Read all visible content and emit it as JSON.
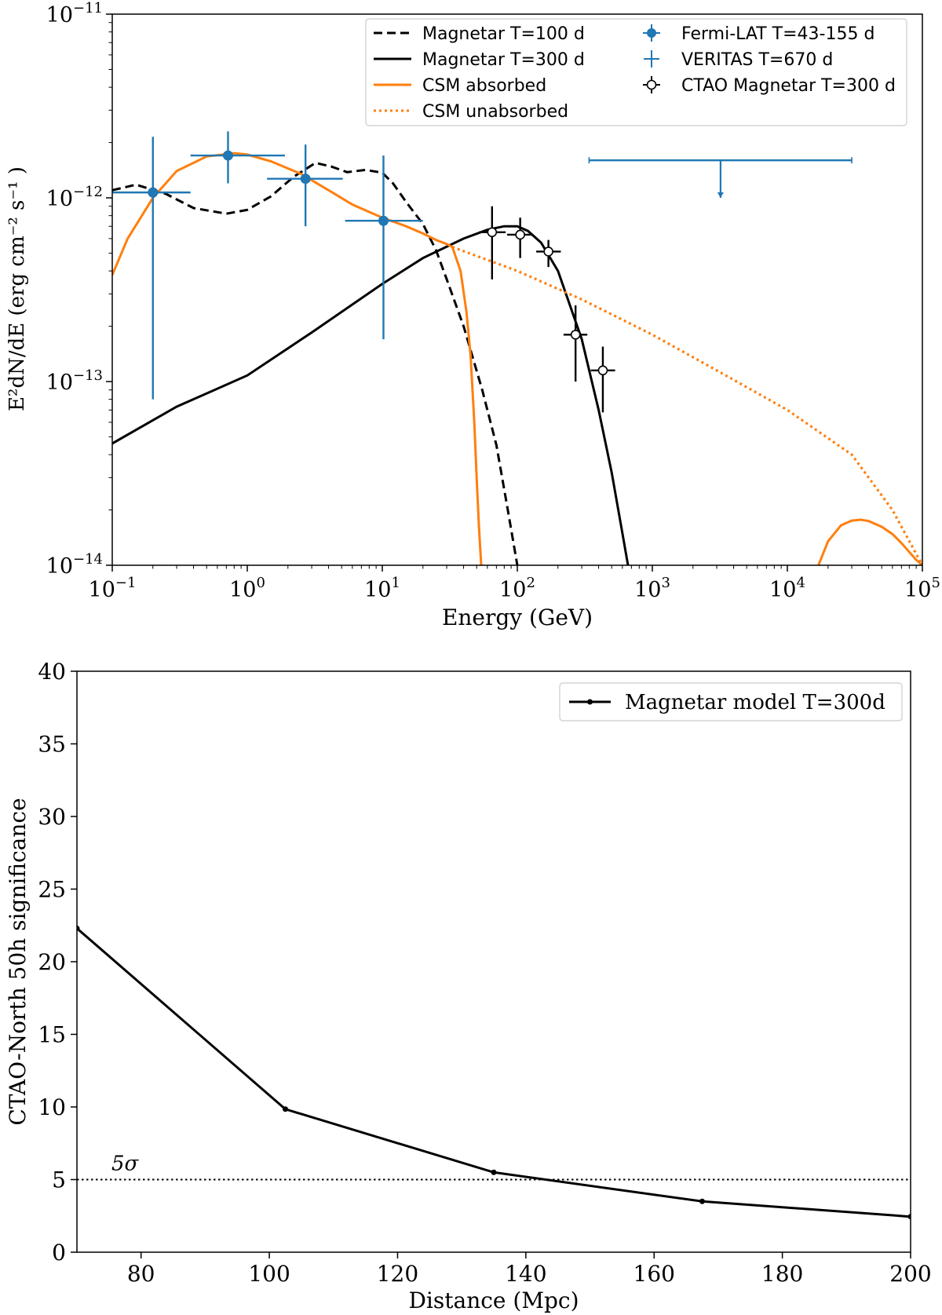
{
  "chart_data": [
    {
      "type": "line",
      "title": "",
      "xlabel": "Energy (GeV)",
      "ylabel": "E²dN/dE (erg cm⁻² s⁻¹ )",
      "x_scale": "log",
      "y_scale": "log",
      "xlim": [
        0.1,
        100000
      ],
      "ylim": [
        1e-14,
        1e-11
      ],
      "x_ticks": [
        {
          "value": 0.1,
          "base": "10",
          "exp": "−1"
        },
        {
          "value": 1,
          "base": "10",
          "exp": "0"
        },
        {
          "value": 10,
          "base": "10",
          "exp": "1"
        },
        {
          "value": 100,
          "base": "10",
          "exp": "2"
        },
        {
          "value": 1000,
          "base": "10",
          "exp": "3"
        },
        {
          "value": 10000,
          "base": "10",
          "exp": "4"
        },
        {
          "value": 100000,
          "base": "10",
          "exp": "5"
        }
      ],
      "y_ticks": [
        {
          "value": 1e-14,
          "base": "10",
          "exp": "−14"
        },
        {
          "value": 1e-13,
          "base": "10",
          "exp": "−13"
        },
        {
          "value": 1e-12,
          "base": "10",
          "exp": "−12"
        },
        {
          "value": 1e-11,
          "base": "10",
          "exp": "−11"
        }
      ],
      "grid": false,
      "legend_position": "top-right",
      "series": [
        {
          "name": "Magnetar T=100 d",
          "kind": "line",
          "style": "dashed",
          "color": "#000000",
          "x": [
            0.1,
            0.15,
            0.25,
            0.4,
            0.7,
            1.0,
            1.5,
            2.2,
            3.2,
            4.2,
            5.5,
            7.5,
            10,
            12,
            15,
            20,
            25,
            30,
            40,
            55,
            70,
            85,
            100
          ],
          "y": [
            1.1e-12,
            1.18e-12,
            1.05e-12,
            8.8e-13,
            8.2e-13,
            8.6e-13,
            1.02e-12,
            1.3e-12,
            1.55e-12,
            1.48e-12,
            1.38e-12,
            1.42e-12,
            1.37e-12,
            1.2e-12,
            9.5e-13,
            7.2e-13,
            5.2e-13,
            3.6e-13,
            2e-13,
            9e-14,
            4.5e-14,
            2e-14,
            1e-14
          ]
        },
        {
          "name": "Magnetar T=300 d",
          "kind": "line",
          "style": "solid",
          "color": "#000000",
          "x": [
            0.1,
            0.3,
            1,
            3,
            10,
            20,
            40,
            60,
            80,
            100,
            120,
            150,
            200,
            300,
            400,
            500,
            600,
            660
          ],
          "y": [
            4.6e-14,
            7.3e-14,
            1.08e-13,
            1.85e-13,
            3.4e-13,
            4.7e-13,
            6e-13,
            6.7e-13,
            7e-13,
            7e-13,
            6.6e-13,
            5.7e-13,
            4e-13,
            1.7e-13,
            7e-14,
            3.2e-14,
            1.5e-14,
            1e-14
          ]
        },
        {
          "name": "CSM absorbed",
          "kind": "line",
          "style": "solid",
          "color": "#ff7f0e",
          "segments": [
            {
              "x": [
                0.1,
                0.13,
                0.2,
                0.3,
                0.5,
                0.8,
                1.0,
                1.5,
                2.5,
                4,
                6,
                10,
                15,
                20,
                25,
                30,
                33,
                38,
                42,
                45,
                48,
                50,
                52,
                54
              ],
              "y": [
                3.8e-13,
                6e-13,
                1e-12,
                1.4e-12,
                1.68e-12,
                1.75e-12,
                1.72e-12,
                1.58e-12,
                1.35e-12,
                1.1e-12,
                9.2e-13,
                7.8e-13,
                7e-13,
                6.4e-13,
                5.9e-13,
                5.6e-13,
                5.4e-13,
                4e-13,
                2.4e-13,
                1.4e-13,
                6e-14,
                3e-14,
                1.6e-14,
                1e-14
              ]
            },
            {
              "x": [
                17000,
                20000,
                25000,
                30000,
                35000,
                40000,
                50000,
                60000,
                70000,
                80000,
                90000,
                100000
              ],
              "y": [
                1e-14,
                1.35e-14,
                1.65e-14,
                1.75e-14,
                1.77e-14,
                1.74e-14,
                1.62e-14,
                1.48e-14,
                1.32e-14,
                1.18e-14,
                1.07e-14,
                1e-14
              ]
            }
          ]
        },
        {
          "name": "CSM unabsorbed",
          "kind": "line",
          "style": "dotted",
          "color": "#ff7f0e",
          "x": [
            33,
            100,
            300,
            1000,
            3000,
            10000,
            30000,
            60000,
            100000
          ],
          "y": [
            5.4e-13,
            4e-13,
            2.8e-13,
            1.8e-13,
            1.15e-13,
            7e-14,
            4e-14,
            2e-14,
            1e-14
          ]
        },
        {
          "name": "Fermi-LAT T=43-155 d",
          "kind": "errorbar",
          "marker": "filled-circle",
          "color": "#1f77b4",
          "points": [
            {
              "x": 0.2,
              "y": 1.07e-12,
              "xlo": 0.1,
              "xhi": 0.38,
              "ylo": 8e-14,
              "yhi": 2.15e-12
            },
            {
              "x": 0.72,
              "y": 1.7e-12,
              "xlo": 0.38,
              "xhi": 1.9,
              "ylo": 1.2e-12,
              "yhi": 2.3e-12
            },
            {
              "x": 2.7,
              "y": 1.27e-12,
              "xlo": 1.4,
              "xhi": 5.1,
              "ylo": 7e-13,
              "yhi": 1.95e-12
            },
            {
              "x": 10.2,
              "y": 7.5e-13,
              "xlo": 5.3,
              "xhi": 20.0,
              "ylo": 1.7e-13,
              "yhi": 1.7e-12
            }
          ]
        },
        {
          "name": "VERITAS T=670 d",
          "kind": "upper-limit",
          "color": "#1f77b4",
          "points": [
            {
              "x": 3200,
              "y": 1.6e-12,
              "xlo": 340,
              "xhi": 30000,
              "arrow_to": 1e-12
            }
          ]
        },
        {
          "name": "CTAO Magnetar T=300 d",
          "kind": "errorbar",
          "marker": "open-circle",
          "color": "#000000",
          "points": [
            {
              "x": 65,
              "y": 6.5e-13,
              "xlo": 52,
              "xhi": 82,
              "ylo": 3.6e-13,
              "yhi": 9e-13
            },
            {
              "x": 105,
              "y": 6.3e-13,
              "xlo": 84,
              "xhi": 130,
              "ylo": 4.7e-13,
              "yhi": 7.8e-13
            },
            {
              "x": 170,
              "y": 5.1e-13,
              "xlo": 138,
              "xhi": 210,
              "ylo": 4.2e-13,
              "yhi": 5.9e-13
            },
            {
              "x": 270,
              "y": 1.8e-13,
              "xlo": 220,
              "xhi": 330,
              "ylo": 1e-13,
              "yhi": 2.6e-13
            },
            {
              "x": 430,
              "y": 1.15e-13,
              "xlo": 350,
              "xhi": 530,
              "ylo": 6.8e-14,
              "yhi": 1.55e-13
            }
          ]
        }
      ]
    },
    {
      "type": "line",
      "title": "",
      "xlabel": "Distance (Mpc)",
      "ylabel": "CTAO-North 50h significance",
      "xlim": [
        70,
        200
      ],
      "ylim": [
        0,
        40
      ],
      "x_ticks": [
        80,
        100,
        120,
        140,
        160,
        180,
        200
      ],
      "y_ticks": [
        0,
        5,
        10,
        15,
        20,
        25,
        30,
        35,
        40
      ],
      "grid": false,
      "legend_position": "top-right",
      "series": [
        {
          "name": "Magnetar model T=300d",
          "kind": "line-marker",
          "color": "#000000",
          "x": [
            70,
            102.5,
            135,
            167.5,
            200
          ],
          "y": [
            22.3,
            9.85,
            5.5,
            3.5,
            2.45
          ]
        }
      ],
      "reference_line": {
        "y": 5,
        "style": "dotted",
        "label": "5σ"
      }
    }
  ]
}
